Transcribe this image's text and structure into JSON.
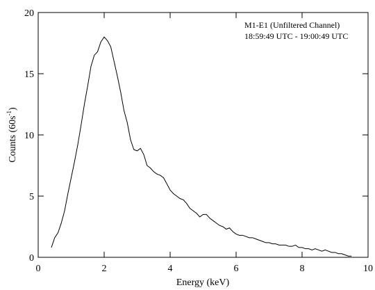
{
  "chart_data": {
    "type": "line",
    "x_label": "Energy (keV)",
    "y_label": "Counts (60s",
    "y_label_sup": "-1",
    "y_label_end": ")",
    "annotations": [
      "M1-E1 (Unfiltered Channel)",
      "18:59:49 UTC - 19:00:49 UTC"
    ],
    "xlim": [
      0,
      10
    ],
    "xticks": [
      0,
      2,
      4,
      6,
      8,
      10
    ],
    "ylim": [
      0,
      20
    ],
    "yticks": [
      0,
      5,
      10,
      15,
      20
    ],
    "grid": false,
    "x": [
      0.4,
      0.5,
      0.6,
      0.7,
      0.8,
      0.9,
      1.0,
      1.1,
      1.2,
      1.3,
      1.4,
      1.5,
      1.6,
      1.7,
      1.8,
      1.9,
      2.0,
      2.1,
      2.2,
      2.3,
      2.4,
      2.5,
      2.6,
      2.7,
      2.8,
      2.9,
      3.0,
      3.1,
      3.2,
      3.3,
      3.4,
      3.5,
      3.6,
      3.7,
      3.8,
      3.9,
      4.0,
      4.1,
      4.2,
      4.3,
      4.4,
      4.5,
      4.6,
      4.7,
      4.8,
      4.9,
      5.0,
      5.1,
      5.2,
      5.3,
      5.4,
      5.5,
      5.6,
      5.7,
      5.8,
      5.9,
      6.0,
      6.1,
      6.2,
      6.3,
      6.4,
      6.5,
      6.6,
      6.7,
      6.8,
      6.9,
      7.0,
      7.1,
      7.2,
      7.3,
      7.4,
      7.5,
      7.6,
      7.7,
      7.8,
      7.9,
      8.0,
      8.1,
      8.2,
      8.3,
      8.4,
      8.5,
      8.6,
      8.7,
      8.8,
      8.9,
      9.0,
      9.1,
      9.2,
      9.3,
      9.4,
      9.5
    ],
    "series": [
      {
        "color": "#000000",
        "values": [
          0.8,
          1.6,
          2.0,
          2.8,
          3.8,
          5.2,
          6.5,
          7.8,
          9.2,
          10.8,
          12.5,
          14.0,
          15.6,
          16.5,
          16.8,
          17.6,
          18.0,
          17.7,
          17.2,
          16.0,
          14.8,
          13.5,
          12.0,
          11.0,
          9.6,
          8.8,
          8.7,
          8.9,
          8.4,
          7.5,
          7.3,
          7.0,
          6.8,
          6.7,
          6.5,
          6.0,
          5.5,
          5.2,
          5.0,
          4.8,
          4.7,
          4.4,
          4.0,
          3.8,
          3.6,
          3.3,
          3.5,
          3.5,
          3.2,
          3.0,
          2.8,
          2.6,
          2.5,
          2.3,
          2.4,
          2.1,
          1.9,
          1.8,
          1.8,
          1.7,
          1.6,
          1.6,
          1.5,
          1.4,
          1.3,
          1.2,
          1.2,
          1.1,
          1.1,
          1.0,
          1.0,
          1.0,
          0.9,
          0.9,
          1.0,
          0.8,
          0.8,
          0.7,
          0.7,
          0.6,
          0.7,
          0.6,
          0.5,
          0.6,
          0.5,
          0.4,
          0.4,
          0.3,
          0.3,
          0.2,
          0.1,
          0.1
        ]
      }
    ]
  }
}
